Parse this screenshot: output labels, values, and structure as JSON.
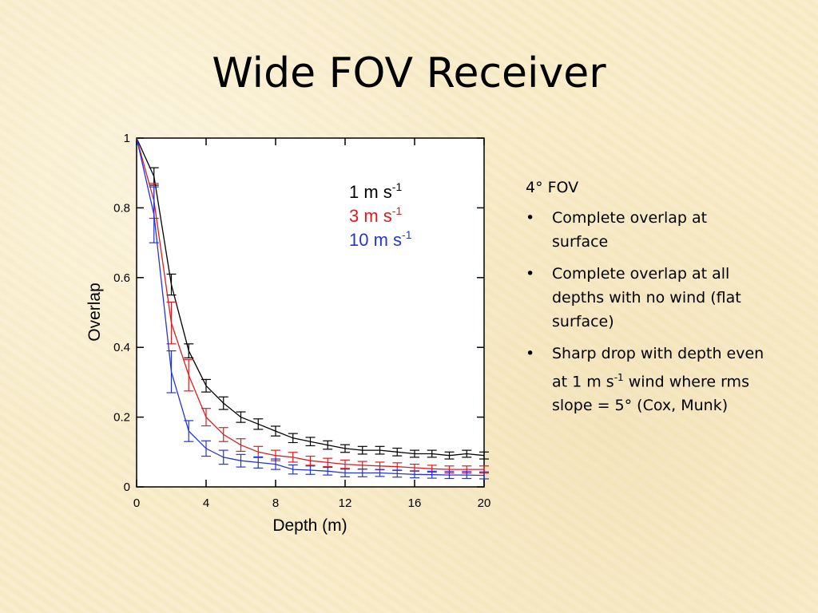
{
  "slide": {
    "title": "Wide FOV Receiver"
  },
  "bullets": {
    "heading": "4° FOV",
    "items": [
      {
        "text": "Complete overlap at surface"
      },
      {
        "text": "Complete overlap at all depths with no wind (flat surface)"
      },
      {
        "pre": "Sharp drop with depth even at 1 m s",
        "sup": "-1",
        "post": " wind where rms slope = 5° (Cox, Munk)"
      }
    ]
  },
  "chart_data": {
    "type": "line",
    "xlabel": "Depth (m)",
    "ylabel": "Overlap",
    "xlim": [
      0,
      20
    ],
    "ylim": [
      0,
      1
    ],
    "xticks": [
      0,
      4,
      8,
      12,
      16,
      20
    ],
    "yticks": [
      0,
      0.2,
      0.4,
      0.6,
      0.8,
      1
    ],
    "ytick_labels": [
      "0",
      "0.2",
      "0.4",
      "0.6",
      "0.8",
      "1"
    ],
    "grid": false,
    "legend": "top-right",
    "x": [
      0,
      1,
      2,
      3,
      4,
      5,
      6,
      7,
      8,
      9,
      10,
      11,
      12,
      13,
      14,
      15,
      16,
      17,
      18,
      19,
      20
    ],
    "series": [
      {
        "name": "1 m s",
        "sup": "-1",
        "color": "#000000",
        "values": [
          1.0,
          0.89,
          0.58,
          0.39,
          0.29,
          0.24,
          0.2,
          0.18,
          0.16,
          0.14,
          0.13,
          0.12,
          0.11,
          0.105,
          0.105,
          0.1,
          0.095,
          0.095,
          0.09,
          0.095,
          0.09
        ],
        "errors": [
          0,
          0.025,
          0.03,
          0.02,
          0.018,
          0.018,
          0.015,
          0.015,
          0.014,
          0.013,
          0.012,
          0.012,
          0.011,
          0.011,
          0.011,
          0.011,
          0.01,
          0.01,
          0.01,
          0.01,
          0.01
        ]
      },
      {
        "name": "3 m s",
        "sup": "-1",
        "color": "#e01a1a",
        "values": [
          1.0,
          0.82,
          0.47,
          0.32,
          0.2,
          0.15,
          0.12,
          0.1,
          0.09,
          0.085,
          0.075,
          0.07,
          0.065,
          0.062,
          0.06,
          0.058,
          0.055,
          0.052,
          0.05,
          0.05,
          0.05
        ],
        "errors": [
          0,
          0.05,
          0.06,
          0.045,
          0.025,
          0.02,
          0.018,
          0.016,
          0.015,
          0.014,
          0.013,
          0.012,
          0.012,
          0.011,
          0.011,
          0.011,
          0.01,
          0.01,
          0.01,
          0.01,
          0.01
        ]
      },
      {
        "name": "10 m s",
        "sup": "-1",
        "color": "#2233dd",
        "values": [
          1.0,
          0.78,
          0.33,
          0.16,
          0.11,
          0.085,
          0.075,
          0.07,
          0.065,
          0.05,
          0.048,
          0.045,
          0.04,
          0.04,
          0.04,
          0.038,
          0.036,
          0.035,
          0.034,
          0.034,
          0.033
        ],
        "errors": [
          0,
          0.08,
          0.06,
          0.03,
          0.022,
          0.02,
          0.018,
          0.016,
          0.015,
          0.013,
          0.012,
          0.011,
          0.011,
          0.011,
          0.01,
          0.01,
          0.01,
          0.01,
          0.01,
          0.01,
          0.01
        ]
      }
    ]
  }
}
